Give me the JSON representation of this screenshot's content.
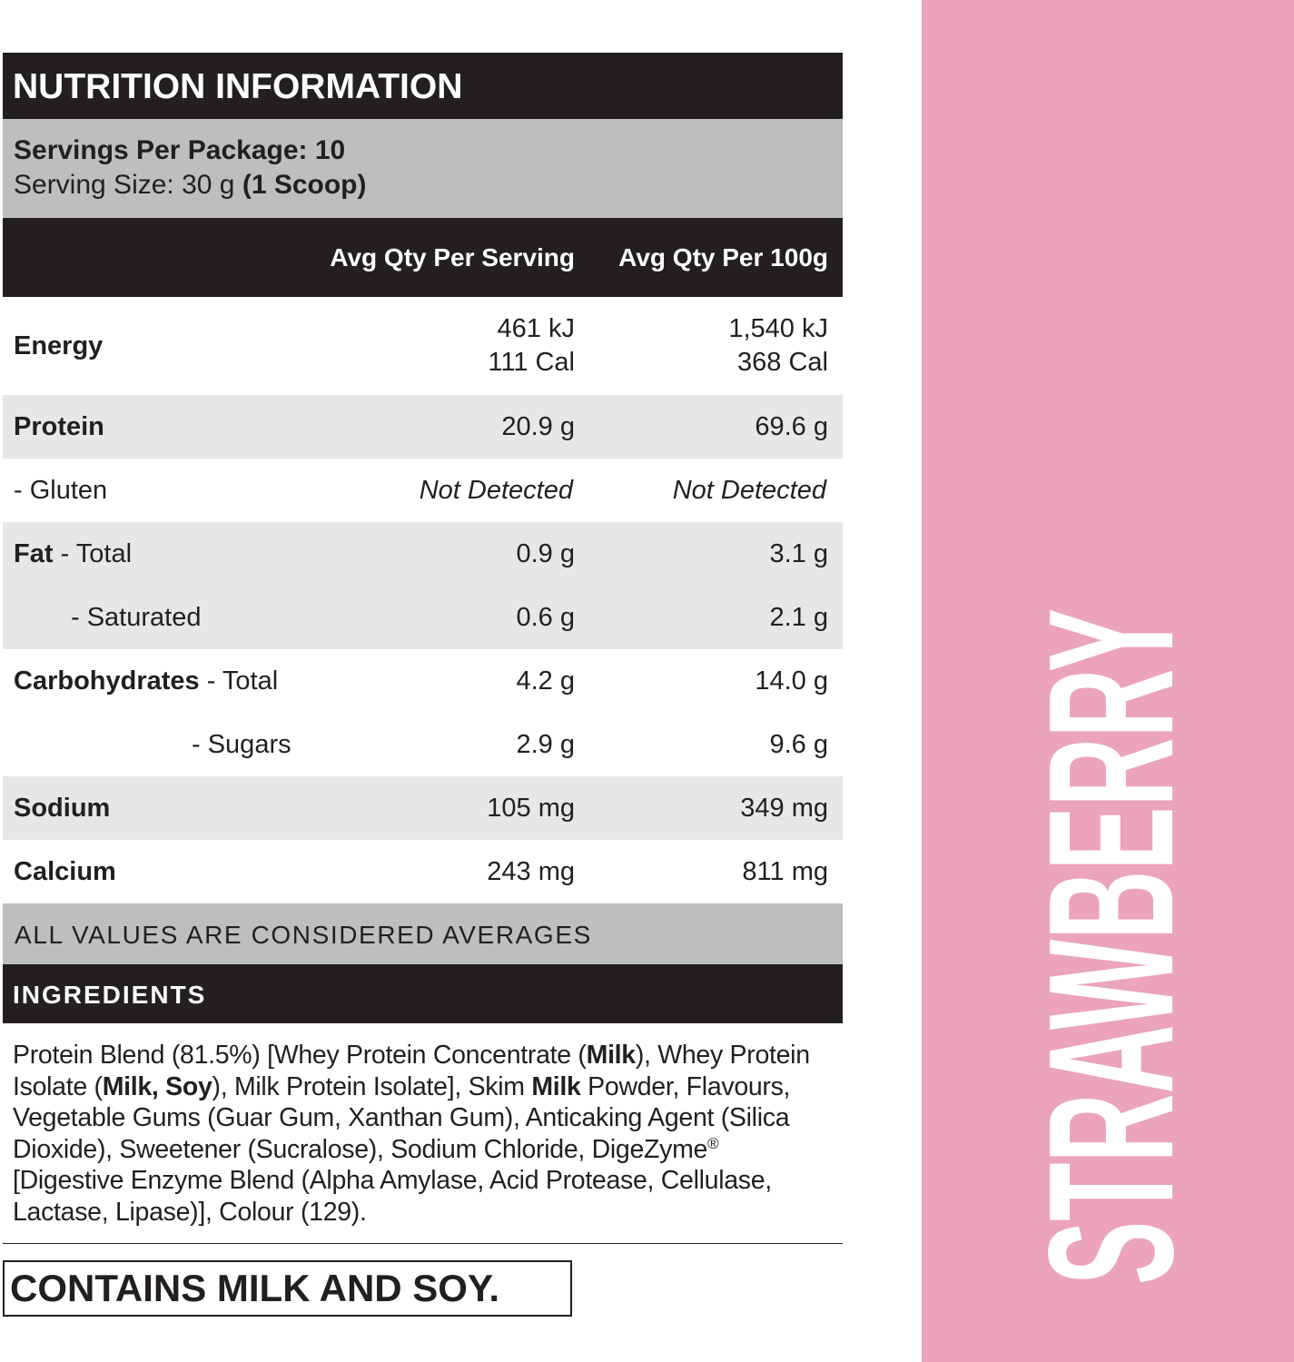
{
  "header": {
    "title": "NUTRITION INFORMATION",
    "servings_per_package": "Servings Per Package: 10",
    "serving_size": "Serving Size: 30 g",
    "serving_size_note": "(1 Scoop)"
  },
  "table": {
    "columns": [
      "Avg Qty Per Serving",
      "Avg Qty Per 100g"
    ],
    "rows": [
      {
        "label": "Energy",
        "per_serving": [
          "461 kJ",
          "111 Cal"
        ],
        "per_100g": [
          "1,540 kJ",
          "368 Cal"
        ]
      },
      {
        "label": "Protein",
        "per_serving": "20.9 g",
        "per_100g": "69.6 g"
      },
      {
        "label": "- Gluten",
        "per_serving": "Not Detected",
        "per_100g": "Not Detected"
      },
      {
        "label": "Fat",
        "qualifier": "- Total",
        "per_serving": "0.9 g",
        "per_100g": "3.1 g"
      },
      {
        "label": "- Saturated",
        "per_serving": "0.6 g",
        "per_100g": "2.1 g"
      },
      {
        "label": "Carbohydrates",
        "qualifier": "- Total",
        "per_serving": "4.2 g",
        "per_100g": "14.0 g"
      },
      {
        "label": "- Sugars",
        "per_serving": "2.9 g",
        "per_100g": "9.6 g"
      },
      {
        "label": "Sodium",
        "per_serving": "105 mg",
        "per_100g": "349 mg"
      },
      {
        "label": "Calcium",
        "per_serving": "243 mg",
        "per_100g": "811 mg"
      }
    ],
    "footnote": "ALL VALUES ARE CONSIDERED AVERAGES"
  },
  "ingredients": {
    "title": "INGREDIENTS",
    "segments": [
      {
        "text": "Protein Blend (81.5%) [Whey Protein Concentrate (",
        "style": "regular"
      },
      {
        "text": "Milk",
        "style": "bold"
      },
      {
        "text": "), Whey Protein Isolate (",
        "style": "regular"
      },
      {
        "text": "Milk, Soy",
        "style": "bold"
      },
      {
        "text": "), Milk Protein Isolate], Skim ",
        "style": "regular"
      },
      {
        "text": "Milk",
        "style": "bold"
      },
      {
        "text": " Powder, Flavours, Vegetable Gums (Guar Gum, Xanthan Gum), Anticaking Agent (Silica Dioxide), Sweetener (Sucralose), Sodium Chloride, DigeZyme",
        "style": "regular"
      },
      {
        "text": "®",
        "style": "superscript"
      },
      {
        "text": " [Digestive Enzyme Blend (Alpha Amylase, Acid Protease, Cellulase, Lactase, Lipase)], Colour (129).",
        "style": "regular"
      }
    ]
  },
  "allergen_statement": "CONTAINS MILK AND SOY.",
  "flavour": "STRAWBERRY"
}
